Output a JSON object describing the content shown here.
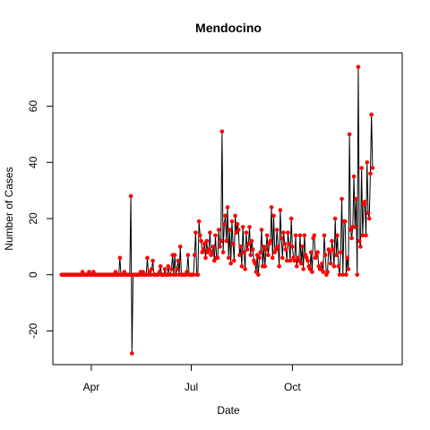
{
  "chart_data": {
    "type": "line",
    "title": "Mendocino",
    "xlabel": "Date",
    "ylabel": "Number of Cases",
    "x_start": "2020-03-05",
    "x_end": "2020-12-31",
    "xlim": [
      "2020-02-26",
      "2021-01-09"
    ],
    "ylim": [
      -32,
      79
    ],
    "x_ticks": [
      {
        "label": "Apr",
        "date": "2020-04-01"
      },
      {
        "label": "Jul",
        "date": "2020-07-01"
      },
      {
        "label": "Oct",
        "date": "2020-10-01"
      }
    ],
    "y_ticks": [
      -20,
      0,
      20,
      40,
      60
    ],
    "grid": false,
    "colors": {
      "line": "#000000",
      "points": "#ff0000"
    },
    "values": [
      0,
      0,
      0,
      0,
      0,
      0,
      0,
      0,
      0,
      0,
      0,
      0,
      0,
      0,
      0,
      0,
      0,
      0,
      0,
      1,
      0,
      0,
      0,
      0,
      0,
      1,
      0,
      0,
      0,
      1,
      0,
      0,
      0,
      0,
      0,
      0,
      0,
      0,
      0,
      0,
      0,
      0,
      0,
      0,
      0,
      0,
      0,
      0,
      0,
      1,
      0,
      0,
      0,
      6,
      0,
      0,
      0,
      1,
      0,
      0,
      0,
      0,
      0,
      28,
      -28,
      0,
      0,
      0,
      0,
      0,
      0,
      0,
      1,
      0,
      1,
      0,
      0,
      0,
      6,
      0,
      1,
      0,
      2,
      5,
      0,
      0,
      0,
      0,
      0,
      1,
      3,
      0,
      0,
      0,
      2,
      0,
      0,
      3,
      0,
      0,
      2,
      7,
      0,
      7,
      0,
      2,
      5,
      0,
      10,
      0,
      0,
      0,
      0,
      0,
      1,
      7,
      0,
      0,
      0,
      0,
      0,
      7,
      15,
      0,
      0,
      19,
      14,
      12,
      8,
      9,
      11,
      6,
      12,
      8,
      9,
      15,
      7,
      8,
      10,
      5,
      14,
      6,
      6,
      16,
      10,
      12,
      51,
      8,
      18,
      21,
      12,
      24,
      6,
      16,
      4,
      19,
      11,
      5,
      21,
      15,
      18,
      16,
      7,
      10,
      3,
      17,
      8,
      2,
      15,
      9,
      11,
      17,
      7,
      12,
      9,
      5,
      4,
      1,
      7,
      0,
      6,
      8,
      16,
      3,
      10,
      3,
      9,
      14,
      7,
      11,
      12,
      24,
      6,
      21,
      8,
      9,
      16,
      10,
      3,
      23,
      13,
      6,
      15,
      11,
      9,
      5,
      15,
      11,
      5,
      20,
      10,
      6,
      5,
      14,
      3,
      6,
      5,
      14,
      4,
      10,
      2,
      14,
      7,
      6,
      5,
      3,
      2,
      8,
      1,
      13,
      14,
      6,
      7,
      8,
      3,
      2,
      2,
      4,
      1,
      14,
      7,
      0,
      1,
      9,
      8,
      4,
      12,
      9,
      3,
      20,
      7,
      14,
      3,
      0,
      8,
      27,
      0,
      19,
      19,
      0,
      6,
      2,
      50,
      16,
      13,
      17,
      35,
      17,
      27,
      0,
      74,
      12,
      10,
      38,
      14,
      25,
      26,
      14,
      40,
      22,
      20,
      36,
      57,
      38
    ]
  }
}
